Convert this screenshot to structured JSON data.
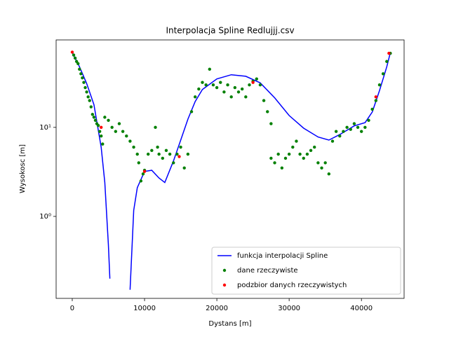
{
  "chart_data": {
    "type": "line",
    "title": "Interpolacja Spline Redlujjj.csv",
    "x_label": "Dystans [m]",
    "y_label": "Wysokosc [m]",
    "xlim": [
      -2230,
      45900
    ],
    "ylim": [
      0.12,
      96
    ],
    "y_scale": "log",
    "xticks": [
      0,
      10000,
      20000,
      30000,
      40000
    ],
    "yticks": [
      {
        "value": 1,
        "label": "10⁰"
      },
      {
        "value": 10,
        "label": "10¹"
      }
    ],
    "legend": "lower right",
    "series": [
      {
        "name": "funkcja interpolacji Spline",
        "type": "line",
        "color": "#0000ff",
        "x": [
          0,
          1000,
          2000,
          3000,
          4000,
          4500,
          5000,
          5200,
          6500,
          8000,
          8500,
          9000,
          10000,
          11000,
          12000,
          12800,
          14000,
          15000,
          16000,
          17000,
          18000,
          20000,
          22000,
          24000,
          26000,
          28000,
          30000,
          32000,
          34000,
          35500,
          37000,
          39000,
          40500,
          41500,
          42500,
          43500,
          44000
        ],
        "values": [
          69,
          48,
          31,
          18,
          6,
          2.4,
          0.48,
          0.2,
          null,
          0.15,
          1.17,
          2.1,
          3.2,
          3.3,
          2.7,
          2.4,
          4.2,
          7.2,
          12.4,
          19.5,
          26.6,
          35,
          39,
          37.5,
          31.6,
          21.5,
          13.6,
          9.8,
          7.8,
          7.2,
          8.3,
          10.4,
          11.3,
          14.9,
          26,
          48,
          69
        ]
      },
      {
        "name": "dane rzeczywiste",
        "type": "scatter",
        "color": "#008000",
        "x": [
          200,
          400,
          600,
          800,
          1000,
          1200,
          1400,
          1600,
          1800,
          2000,
          2200,
          2400,
          2600,
          2800,
          3000,
          3200,
          3400,
          3600,
          3800,
          4000,
          4200,
          4500,
          5000,
          5500,
          6000,
          6500,
          7000,
          7500,
          8000,
          8500,
          9000,
          9200,
          9500,
          9800,
          10000,
          10500,
          11000,
          11500,
          11800,
          12000,
          12500,
          13000,
          13500,
          14000,
          14500,
          15000,
          15500,
          16000,
          16500,
          17000,
          17500,
          18000,
          18500,
          19000,
          19500,
          20000,
          20500,
          21000,
          21500,
          22000,
          22500,
          23000,
          23500,
          24000,
          24500,
          25000,
          25500,
          26000,
          26500,
          27000,
          27500,
          27500,
          28000,
          28500,
          29000,
          29500,
          30000,
          30500,
          31000,
          31500,
          32000,
          32500,
          33000,
          33500,
          34000,
          34500,
          35000,
          35500,
          36000,
          36500,
          37000,
          37500,
          38000,
          38500,
          39000,
          39500,
          40000,
          40500,
          41000,
          41500,
          42000,
          42500,
          43000,
          43500,
          44000
        ],
        "values": [
          65,
          60,
          55,
          52,
          45,
          40,
          36,
          32,
          28,
          25,
          22,
          20,
          17,
          14,
          13,
          12,
          11,
          10.5,
          9,
          8,
          6.5,
          13,
          12,
          10,
          9,
          11,
          9,
          8,
          7,
          6,
          5,
          4,
          2.5,
          3,
          3.3,
          5,
          5.5,
          10,
          6,
          5,
          4.5,
          5.5,
          5,
          4,
          5,
          6,
          3.5,
          5,
          15,
          22,
          27,
          32,
          30,
          45,
          30,
          28,
          32,
          25,
          30,
          22,
          28,
          25,
          27,
          22,
          30,
          33,
          35,
          30,
          20,
          15,
          11,
          4.5,
          4,
          5,
          3.5,
          4.5,
          5,
          6,
          7,
          5,
          4.5,
          5,
          5.5,
          6,
          4,
          3.5,
          4,
          3,
          7,
          9,
          8,
          9,
          10,
          9.5,
          11,
          10,
          9,
          10,
          12,
          16,
          20,
          30,
          40,
          55,
          68
        ]
      },
      {
        "name": "podzbior danych rzeczywistych",
        "type": "scatter",
        "color": "#ff0000",
        "x": [
          0,
          4000,
          10000,
          14800,
          25000,
          42000,
          43800
        ],
        "values": [
          70,
          10,
          3.2,
          4.7,
          32,
          22,
          68
        ]
      }
    ]
  }
}
